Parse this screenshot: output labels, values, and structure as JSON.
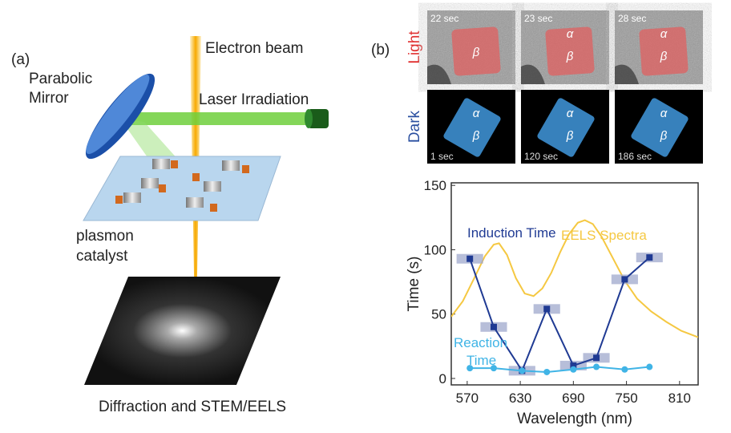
{
  "panel_a": {
    "label": "(a)",
    "electron_beam": "Electron beam",
    "mirror": "Parabolic Mirror",
    "laser": "Laser Irradiation",
    "catalyst": "plasmon catalyst",
    "detector": "Diffraction and STEM/EELS"
  },
  "panel_b": {
    "label": "(b)",
    "rows": [
      {
        "name": "Light",
        "frames": [
          {
            "time": "22 sec",
            "phases": [
              "β"
            ]
          },
          {
            "time": "23 sec",
            "phases": [
              "α",
              "β"
            ]
          },
          {
            "time": "28 sec",
            "phases": [
              "α",
              "β"
            ]
          }
        ]
      },
      {
        "name": "Dark",
        "frames": [
          {
            "time": "1 sec",
            "phases": [
              "α",
              "β"
            ]
          },
          {
            "time": "120 sec",
            "phases": [
              "α",
              "β"
            ]
          },
          {
            "time": "186 sec",
            "phases": [
              "α",
              "β"
            ]
          }
        ]
      }
    ]
  },
  "chart_data": {
    "type": "line",
    "x_label": "Wavelength (nm)",
    "y_label": "Time (s)",
    "xlim": [
      552,
      831
    ],
    "ylim": [
      -5,
      152
    ],
    "xticks": [
      570,
      630,
      690,
      750,
      810
    ],
    "yticks": [
      0,
      50,
      100,
      150
    ],
    "series": [
      {
        "name": "EELS Spectra",
        "color": "#f5c842",
        "x": [
          552,
          565,
          578,
          590,
          600,
          606,
          615,
          625,
          635,
          645,
          655,
          665,
          675,
          685,
          695,
          703,
          712,
          722,
          735,
          748,
          762,
          778,
          795,
          812,
          831
        ],
        "values": [
          48,
          60,
          78,
          95,
          104,
          105,
          96,
          78,
          66,
          64,
          70,
          82,
          98,
          112,
          121,
          123,
          120,
          110,
          93,
          76,
          62,
          52,
          44,
          37,
          32
        ]
      },
      {
        "name": "Induction Time",
        "color": "#1f3a93",
        "markers": "square",
        "x": [
          573,
          600,
          632,
          660,
          690,
          716,
          748,
          776
        ],
        "values": [
          93,
          40,
          6,
          54,
          10,
          16,
          77,
          94
        ],
        "xerr": [
          15,
          15,
          15,
          15,
          15,
          15,
          15,
          15
        ]
      },
      {
        "name": "Reaction Time",
        "color": "#40b4e6",
        "markers": "circle",
        "x": [
          573,
          600,
          632,
          660,
          690,
          716,
          748,
          776
        ],
        "values": [
          8,
          8,
          6,
          5,
          7,
          9,
          7,
          9
        ]
      }
    ]
  }
}
